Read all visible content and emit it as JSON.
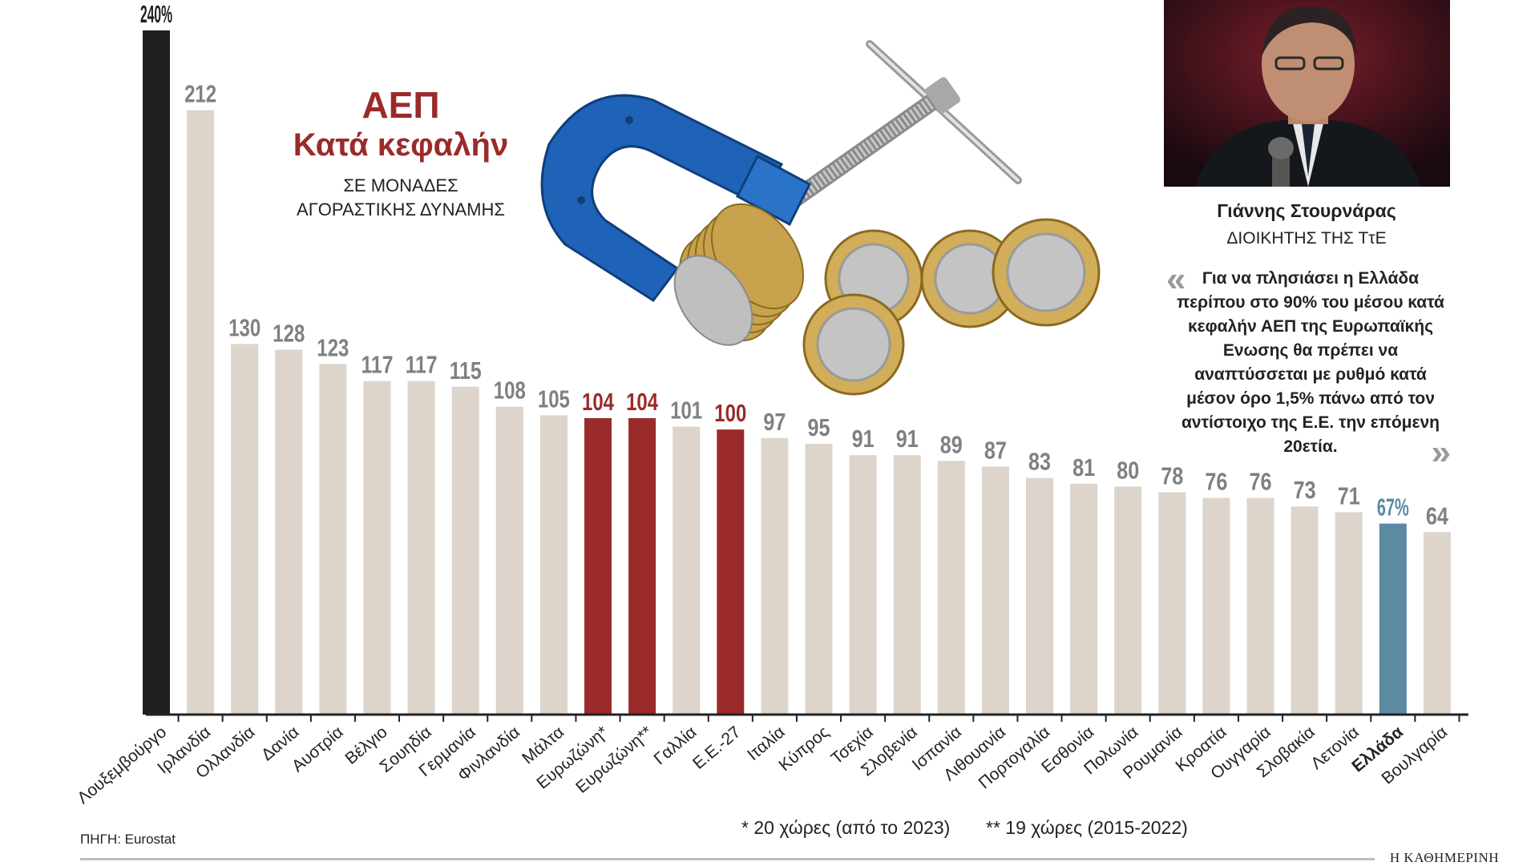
{
  "chart_data": {
    "type": "bar",
    "title": "ΑΕΠ",
    "subtitle": "Κατά κεφαλήν",
    "unit_lines": [
      "ΣΕ ΜΟΝΑΔΕΣ",
      "ΑΓΟΡΑΣΤΙΚΗΣ ΔΥΝΑΜΗΣ"
    ],
    "ylim": [
      0,
      240
    ],
    "categories": [
      "Λουξεμβούργο",
      "Ιρλανδία",
      "Ολλανδία",
      "Δανία",
      "Αυστρία",
      "Βέλγιο",
      "Σουηδία",
      "Γερμανία",
      "Φινλανδία",
      "Μάλτα",
      "Ευρωζώνη*",
      "Ευρωζώνη**",
      "Γαλλία",
      "Ε.Ε.-27",
      "Ιταλία",
      "Κύπρος",
      "Τσεχία",
      "Σλοβενία",
      "Ισπανία",
      "Λιθουανία",
      "Πορτογαλία",
      "Εσθονία",
      "Πολωνία",
      "Ρουμανία",
      "Κροατία",
      "Ουγγαρία",
      "Σλοβακία",
      "Λετονία",
      "Ελλάδα",
      "Βουλγαρία"
    ],
    "values": [
      240,
      212,
      130,
      128,
      123,
      117,
      117,
      115,
      108,
      105,
      104,
      104,
      101,
      100,
      97,
      95,
      91,
      91,
      89,
      87,
      83,
      81,
      80,
      78,
      76,
      76,
      73,
      71,
      67,
      64
    ],
    "value_labels": [
      "240%",
      "212",
      "130",
      "128",
      "123",
      "117",
      "117",
      "115",
      "108",
      "105",
      "104",
      "104",
      "101",
      "100",
      "97",
      "95",
      "91",
      "91",
      "89",
      "87",
      "83",
      "81",
      "80",
      "78",
      "76",
      "76",
      "73",
      "71",
      "67%",
      "64"
    ],
    "groups": [
      "top",
      "normal",
      "normal",
      "normal",
      "normal",
      "normal",
      "normal",
      "normal",
      "normal",
      "normal",
      "benchmark",
      "benchmark",
      "normal",
      "benchmark",
      "normal",
      "normal",
      "normal",
      "normal",
      "normal",
      "normal",
      "normal",
      "normal",
      "normal",
      "normal",
      "normal",
      "normal",
      "normal",
      "normal",
      "greece",
      "normal"
    ],
    "colors": {
      "top": "#1f1f1f",
      "normal": "#ddd4cb",
      "benchmark": "#9b2a2a",
      "greece": "#5b8aa1"
    },
    "label_colors": {
      "top": "#1f1f1f",
      "normal": "#808080",
      "benchmark": "#9b2a2a",
      "greece": "#5b8aa1"
    },
    "xlabel": "",
    "ylabel": ""
  },
  "person": {
    "name": "Γιάννης Στουρνάρας",
    "role": "ΔΙΟΙΚΗΤΗΣ ΤΗΣ ΤτΕ",
    "quote": "Για να πλησιάσει η Ελλάδα περίπου στο 90% του μέσου κατά κεφαλήν ΑΕΠ της Ευρωπαϊκής Ενωσης θα πρέπει να αναπτύσσεται με ρυθμό κατά μέσον όρο 1,5% πάνω από τον αντίστοιχο της Ε.Ε. την επόμενη 20ετία.",
    "quote_open": "«",
    "quote_close": "»"
  },
  "footer": {
    "source": "ΠΗΓΗ: Eurostat",
    "note1": "*  20 χώρες (από το 2023)",
    "note2": "** 19 χώρες (2015-2022)",
    "brand": "Η ΚΑΘΗΜΕΡΙΝΗ"
  }
}
